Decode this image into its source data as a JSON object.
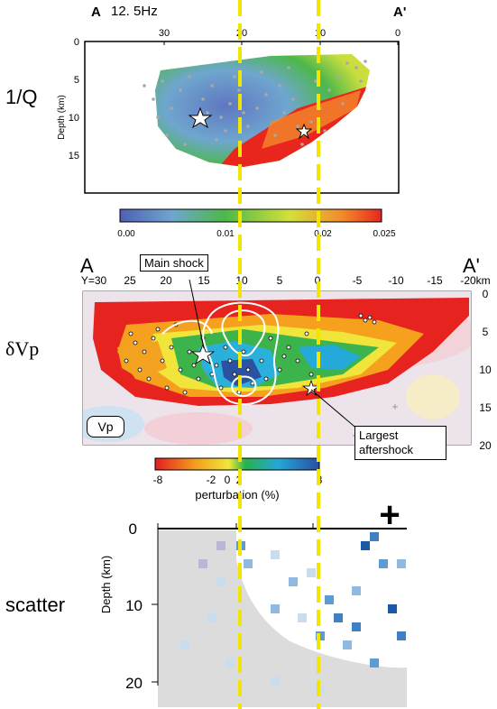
{
  "panel1": {
    "row_label": "1/Q",
    "end_left": "A",
    "end_right": "A'",
    "frequency": "12. 5Hz",
    "x_ticks": [
      "30",
      "20",
      "10",
      "0"
    ],
    "y_label": "Depth (km)",
    "y_ticks": [
      "0",
      "5",
      "10",
      "15"
    ],
    "colorbar_ticks": [
      "0.00",
      "0.01",
      "0.02",
      "0.025"
    ],
    "colors": [
      "#4f5fb3",
      "#6fa6cf",
      "#4cb84a",
      "#d3e03a",
      "#f28a2c",
      "#e8261e"
    ]
  },
  "panel2": {
    "row_label": "δVp",
    "end_left": "A",
    "end_right": "A'",
    "x_ticks": [
      "Y=30",
      "25",
      "20",
      "15",
      "10",
      "5",
      "0",
      "-5",
      "-10",
      "-15",
      "-20km"
    ],
    "y_ticks": [
      "0",
      "5",
      "10",
      "15",
      "20"
    ],
    "main_shock_label": "Main shock",
    "aftershock_label_line1": "Largest",
    "aftershock_label_line2": "aftershock",
    "vp_label": "Vp",
    "colorbar_ticks": [
      "-8",
      "-2",
      "0",
      "2",
      "8"
    ],
    "colorbar_label": "perturbation (%)",
    "colors": [
      "#e41e1e",
      "#f3a11f",
      "#f2e63b",
      "#27b24a",
      "#23a7d9",
      "#2a4fa0"
    ]
  },
  "panel3": {
    "row_label": "scatter",
    "y_label": "Depth (km)",
    "y_ticks": [
      "0",
      "10",
      "20"
    ],
    "plus_marker": "+",
    "colors": [
      "#1b59a8",
      "#5f9bd3",
      "#c9ddee",
      "#dcdcdc"
    ]
  },
  "guide_line_color": "#f2e600"
}
